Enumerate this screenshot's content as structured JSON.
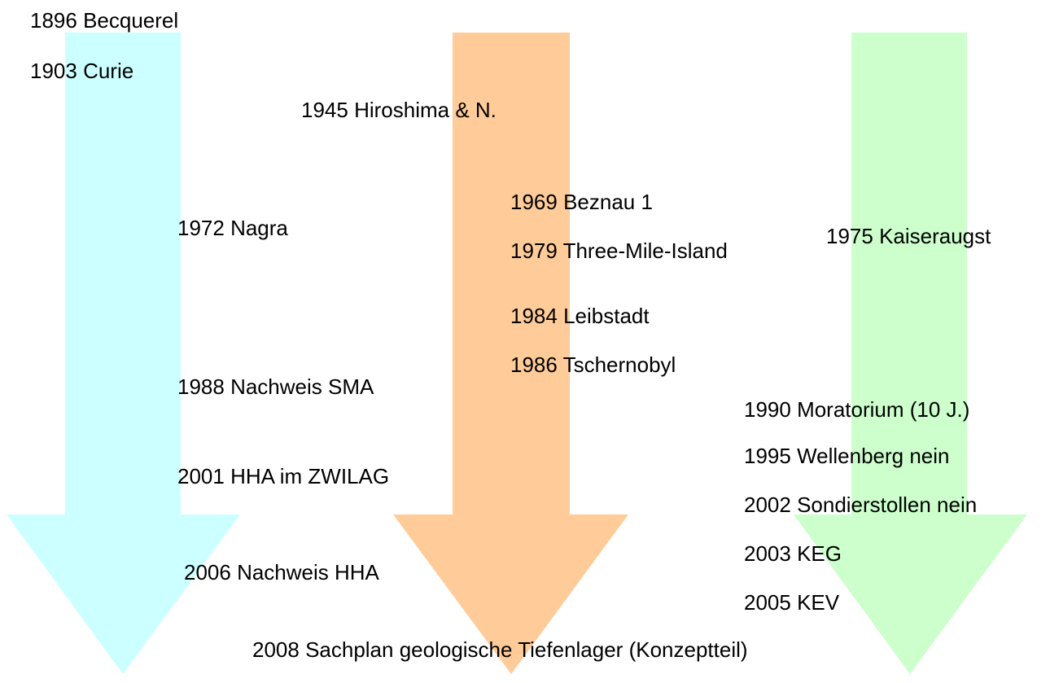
{
  "events": [
    "1896 Becquerel",
    "1903 Curie",
    "1945 Hiroshima & N.",
    "1969 Beznau 1",
    "1972 Nagra",
    "1975 Kaiseraugst",
    "1979 Three-Mile-Island",
    "1984 Leibstadt",
    "1986 Tschernobyl",
    "1988 Nachweis SMA",
    "1990 Moratorium (10 J.)",
    "1995 Wellenberg nein",
    "2001 HHA im ZWILAG",
    "2002 Sondierstollen nein",
    "2003 KEG",
    "2006 Nachweis HHA",
    "2005 KEV",
    "2008 Sachplan geologische Tiefenlager (Konzeptteil)"
  ]
}
